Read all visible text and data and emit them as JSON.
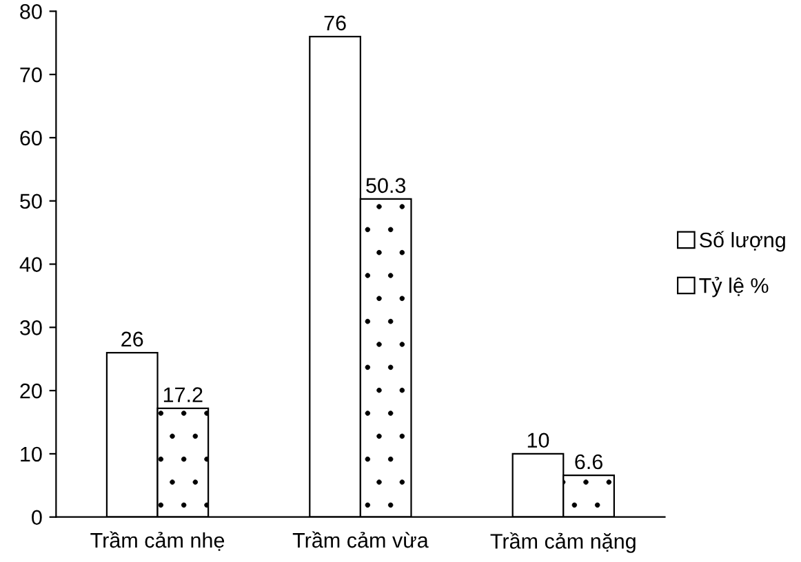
{
  "chart_data": {
    "type": "bar",
    "categories": [
      "Trầm cảm nhẹ",
      "Trầm cảm vừa",
      "Trầm cảm nặng"
    ],
    "series": [
      {
        "name": "Số lượng",
        "color": "#ffffff",
        "values": [
          26,
          76,
          10
        ]
      },
      {
        "name": "Tỷ lệ %",
        "color": "#ffffff",
        "values": [
          17.2,
          50.3,
          6.6
        ]
      }
    ],
    "ylim": [
      0,
      80
    ],
    "yticks": [
      0,
      10,
      20,
      30,
      40,
      50,
      60,
      70,
      80
    ],
    "data_labels": true,
    "legend": "right",
    "grid": false
  }
}
